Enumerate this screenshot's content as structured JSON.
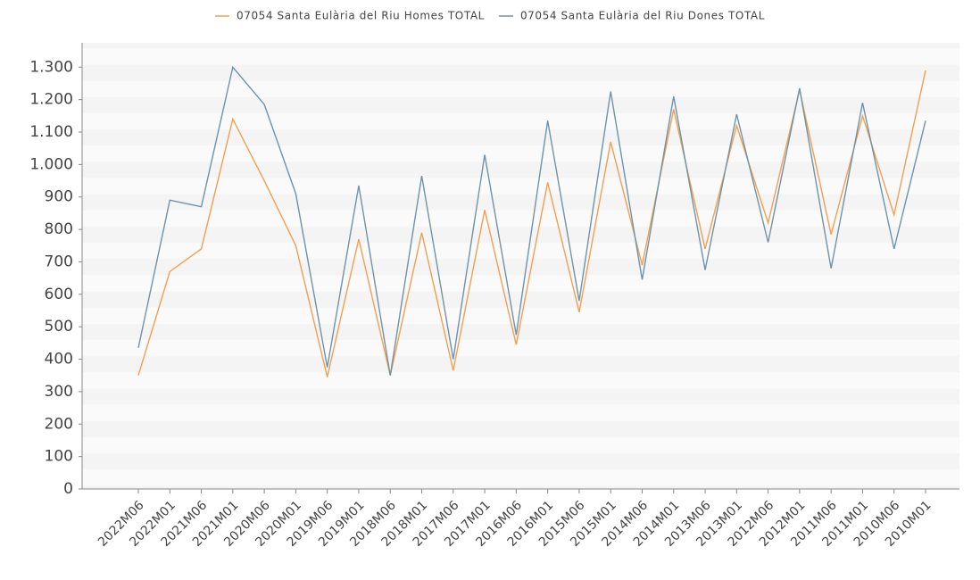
{
  "chart_data": {
    "type": "line",
    "categories": [
      "2022M06",
      "2022M01",
      "2021M06",
      "2021M01",
      "2020M06",
      "2020M01",
      "2019M06",
      "2019M01",
      "2018M06",
      "2018M01",
      "2017M06",
      "2017M01",
      "2016M06",
      "2016M01",
      "2015M06",
      "2015M01",
      "2014M06",
      "2014M01",
      "2013M06",
      "2013M01",
      "2012M06",
      "2012M01",
      "2011M06",
      "2011M01",
      "2010M06",
      "2010M01"
    ],
    "series": [
      {
        "name": "07054 Santa Eulària del Riu Homes TOTAL",
        "color": "#f0a050",
        "values": [
          350,
          670,
          740,
          1140,
          950,
          750,
          345,
          770,
          350,
          790,
          365,
          860,
          445,
          945,
          545,
          1070,
          690,
          1170,
          740,
          1120,
          820,
          1230,
          785,
          1150,
          845,
          1290
        ]
      },
      {
        "name": "07054 Santa Eulària del Riu Dones TOTAL",
        "color": "#6f93a8",
        "values": [
          435,
          890,
          870,
          1300,
          1185,
          910,
          375,
          935,
          350,
          965,
          400,
          1030,
          475,
          1135,
          580,
          1225,
          645,
          1210,
          675,
          1155,
          760,
          1235,
          680,
          1190,
          740,
          1135
        ]
      }
    ],
    "ylim": [
      0,
      1375
    ],
    "yticks": [
      0,
      100,
      200,
      300,
      400,
      500,
      600,
      700,
      800,
      900,
      {
        "value": 1000,
        "label": "1.000"
      },
      {
        "value": 1100,
        "label": "1.100"
      },
      {
        "value": 1200,
        "label": "1.200"
      },
      {
        "value": 1300,
        "label": "1.300"
      }
    ],
    "legend": "top"
  }
}
